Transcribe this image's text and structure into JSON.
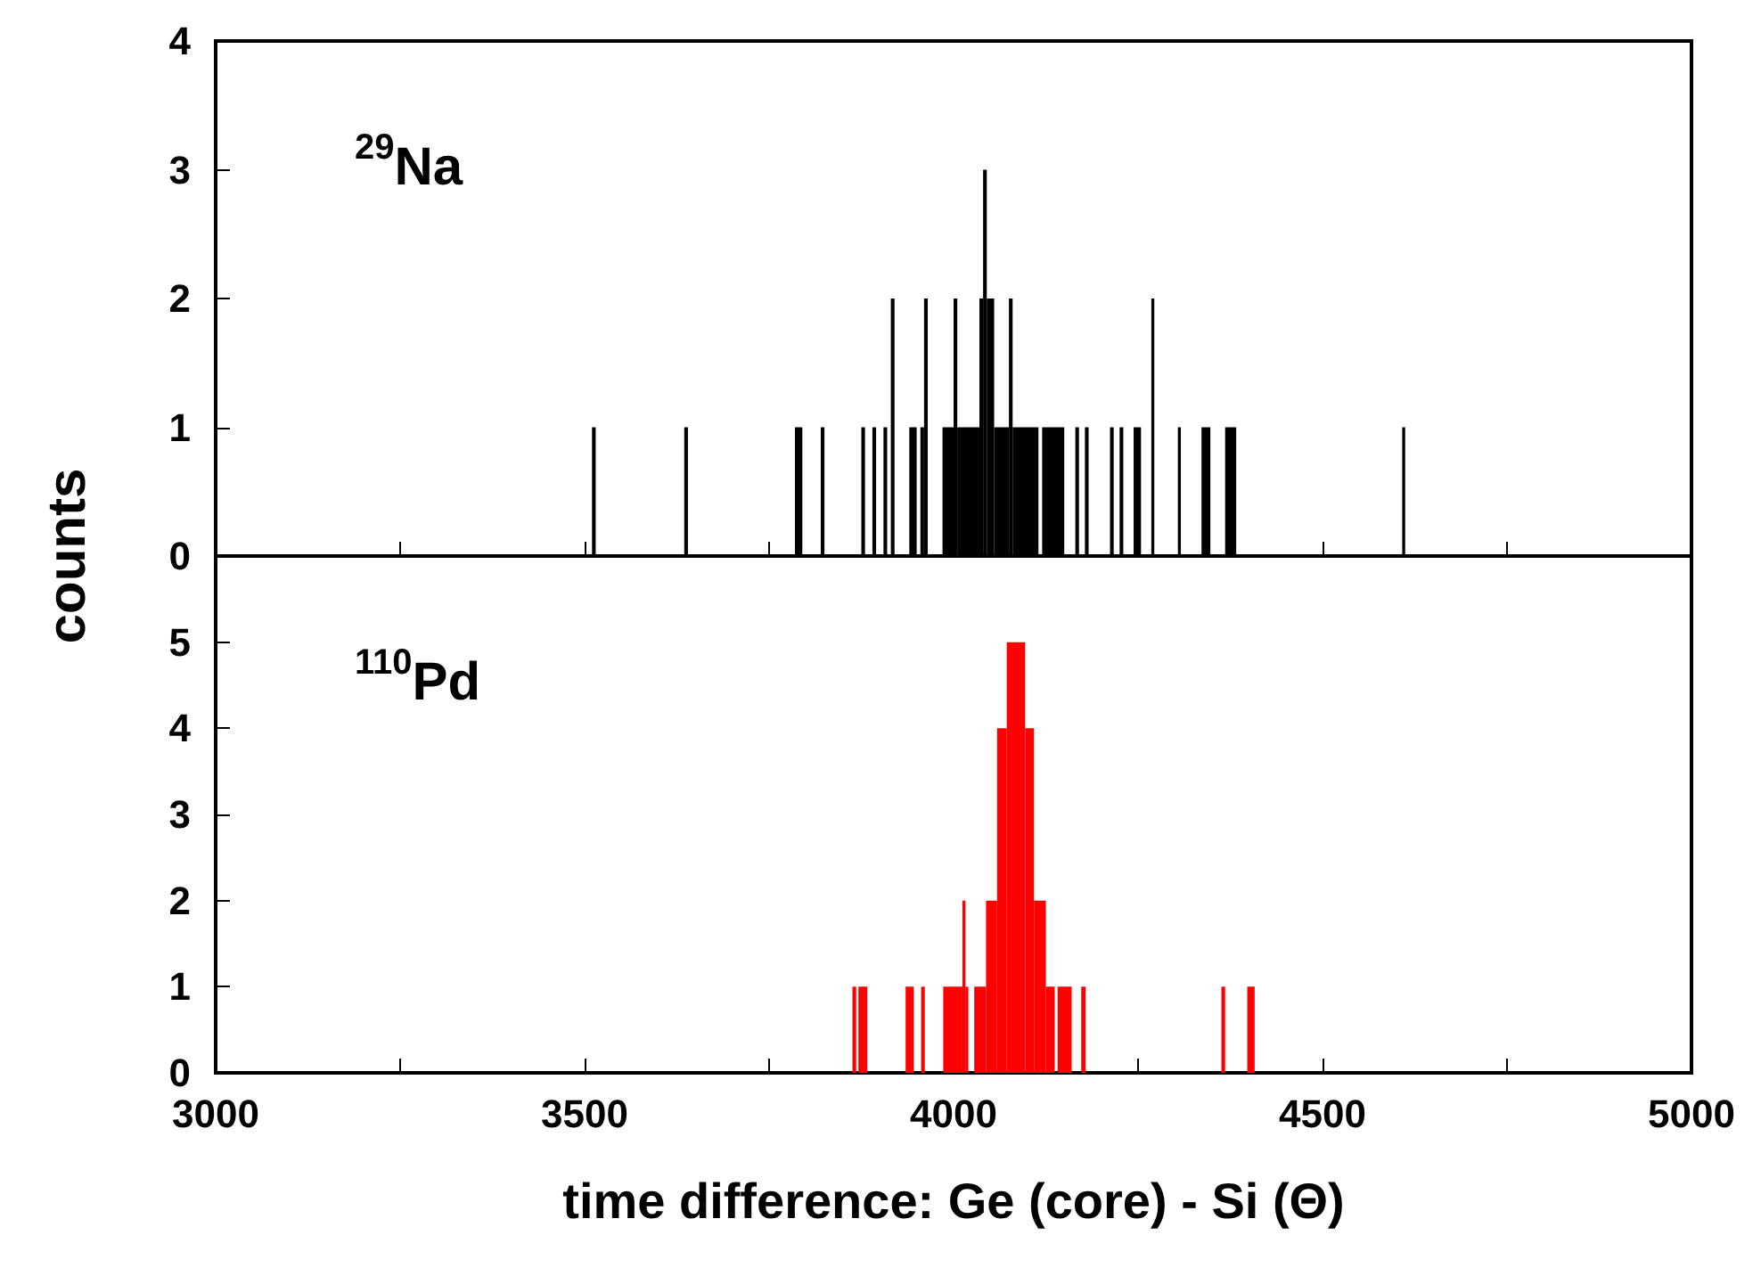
{
  "chart_data": [
    {
      "type": "histogram",
      "ylabel": "counts",
      "annotations": [
        "$^{29}$Na"
      ],
      "color": "#000000",
      "bins": [
        3510,
        3515,
        3635,
        3640,
        3785,
        3795,
        3820,
        3825,
        3875,
        3880,
        3890,
        3895,
        3905,
        3910,
        3915,
        3920,
        3940,
        3950,
        3955,
        3960,
        3965,
        3985,
        4000,
        4005,
        4035,
        4040,
        4045,
        4055,
        4075,
        4080,
        4115,
        4120,
        4150,
        4165,
        4170,
        4178,
        4183,
        4212,
        4217,
        4225,
        4230,
        4244,
        4254,
        4268,
        4272,
        4304,
        4308,
        4336,
        4348,
        4368,
        4383,
        4608,
        4612
      ],
      "values": [
        1,
        0,
        1,
        0,
        1,
        0,
        1,
        0,
        1,
        0,
        1,
        0,
        1,
        0,
        2,
        0,
        1,
        0,
        1,
        2,
        0,
        1,
        2,
        1,
        2,
        3,
        2,
        1,
        2,
        1,
        0,
        1,
        0,
        1,
        0,
        1,
        0,
        1,
        0,
        1,
        0,
        1,
        0,
        2,
        0,
        1,
        0,
        1,
        0,
        1,
        0,
        1
      ],
      "xlim": [
        3000,
        5000
      ],
      "xticks": [
        3000,
        {
          "value": 3250,
          "label": null
        },
        3500,
        {
          "value": 3750,
          "label": null
        },
        4000,
        {
          "value": 4250,
          "label": null
        },
        4500,
        {
          "value": 4750,
          "label": null
        },
        5000
      ],
      "ylim": [
        0,
        4
      ],
      "yticks": [
        0,
        1,
        2,
        3,
        4
      ],
      "tick_labels": "y",
      "grid": false
    },
    {
      "type": "histogram",
      "xlabel": "time difference: Ge (core) - Si (Θ)",
      "annotations": [
        "$^{110}$Pd"
      ],
      "color": "#ff0000",
      "bins": [
        3863,
        3868,
        3871,
        3883,
        3935,
        3946,
        3956,
        3961,
        3986,
        4012,
        4016,
        4020,
        4028,
        4044,
        4059,
        4072,
        4097,
        4109,
        4125,
        4137,
        4141,
        4160,
        4173,
        4179,
        4363,
        4368,
        4398,
        4408
      ],
      "values": [
        1,
        0,
        1,
        0,
        1,
        0,
        1,
        0,
        1,
        2,
        1,
        0,
        1,
        2,
        4,
        5,
        4,
        2,
        1,
        0,
        1,
        0,
        1,
        0,
        1,
        0,
        1
      ],
      "xlim": [
        3000,
        5000
      ],
      "xticks": [
        3000,
        {
          "value": 3250,
          "label": null
        },
        3500,
        {
          "value": 3750,
          "label": null
        },
        4000,
        {
          "value": 4250,
          "label": null
        },
        4500,
        {
          "value": 4750,
          "label": null
        },
        5000
      ],
      "ylim": [
        0,
        6
      ],
      "yticks": [
        0,
        1,
        2,
        3,
        4,
        5
      ],
      "grid": false
    }
  ]
}
